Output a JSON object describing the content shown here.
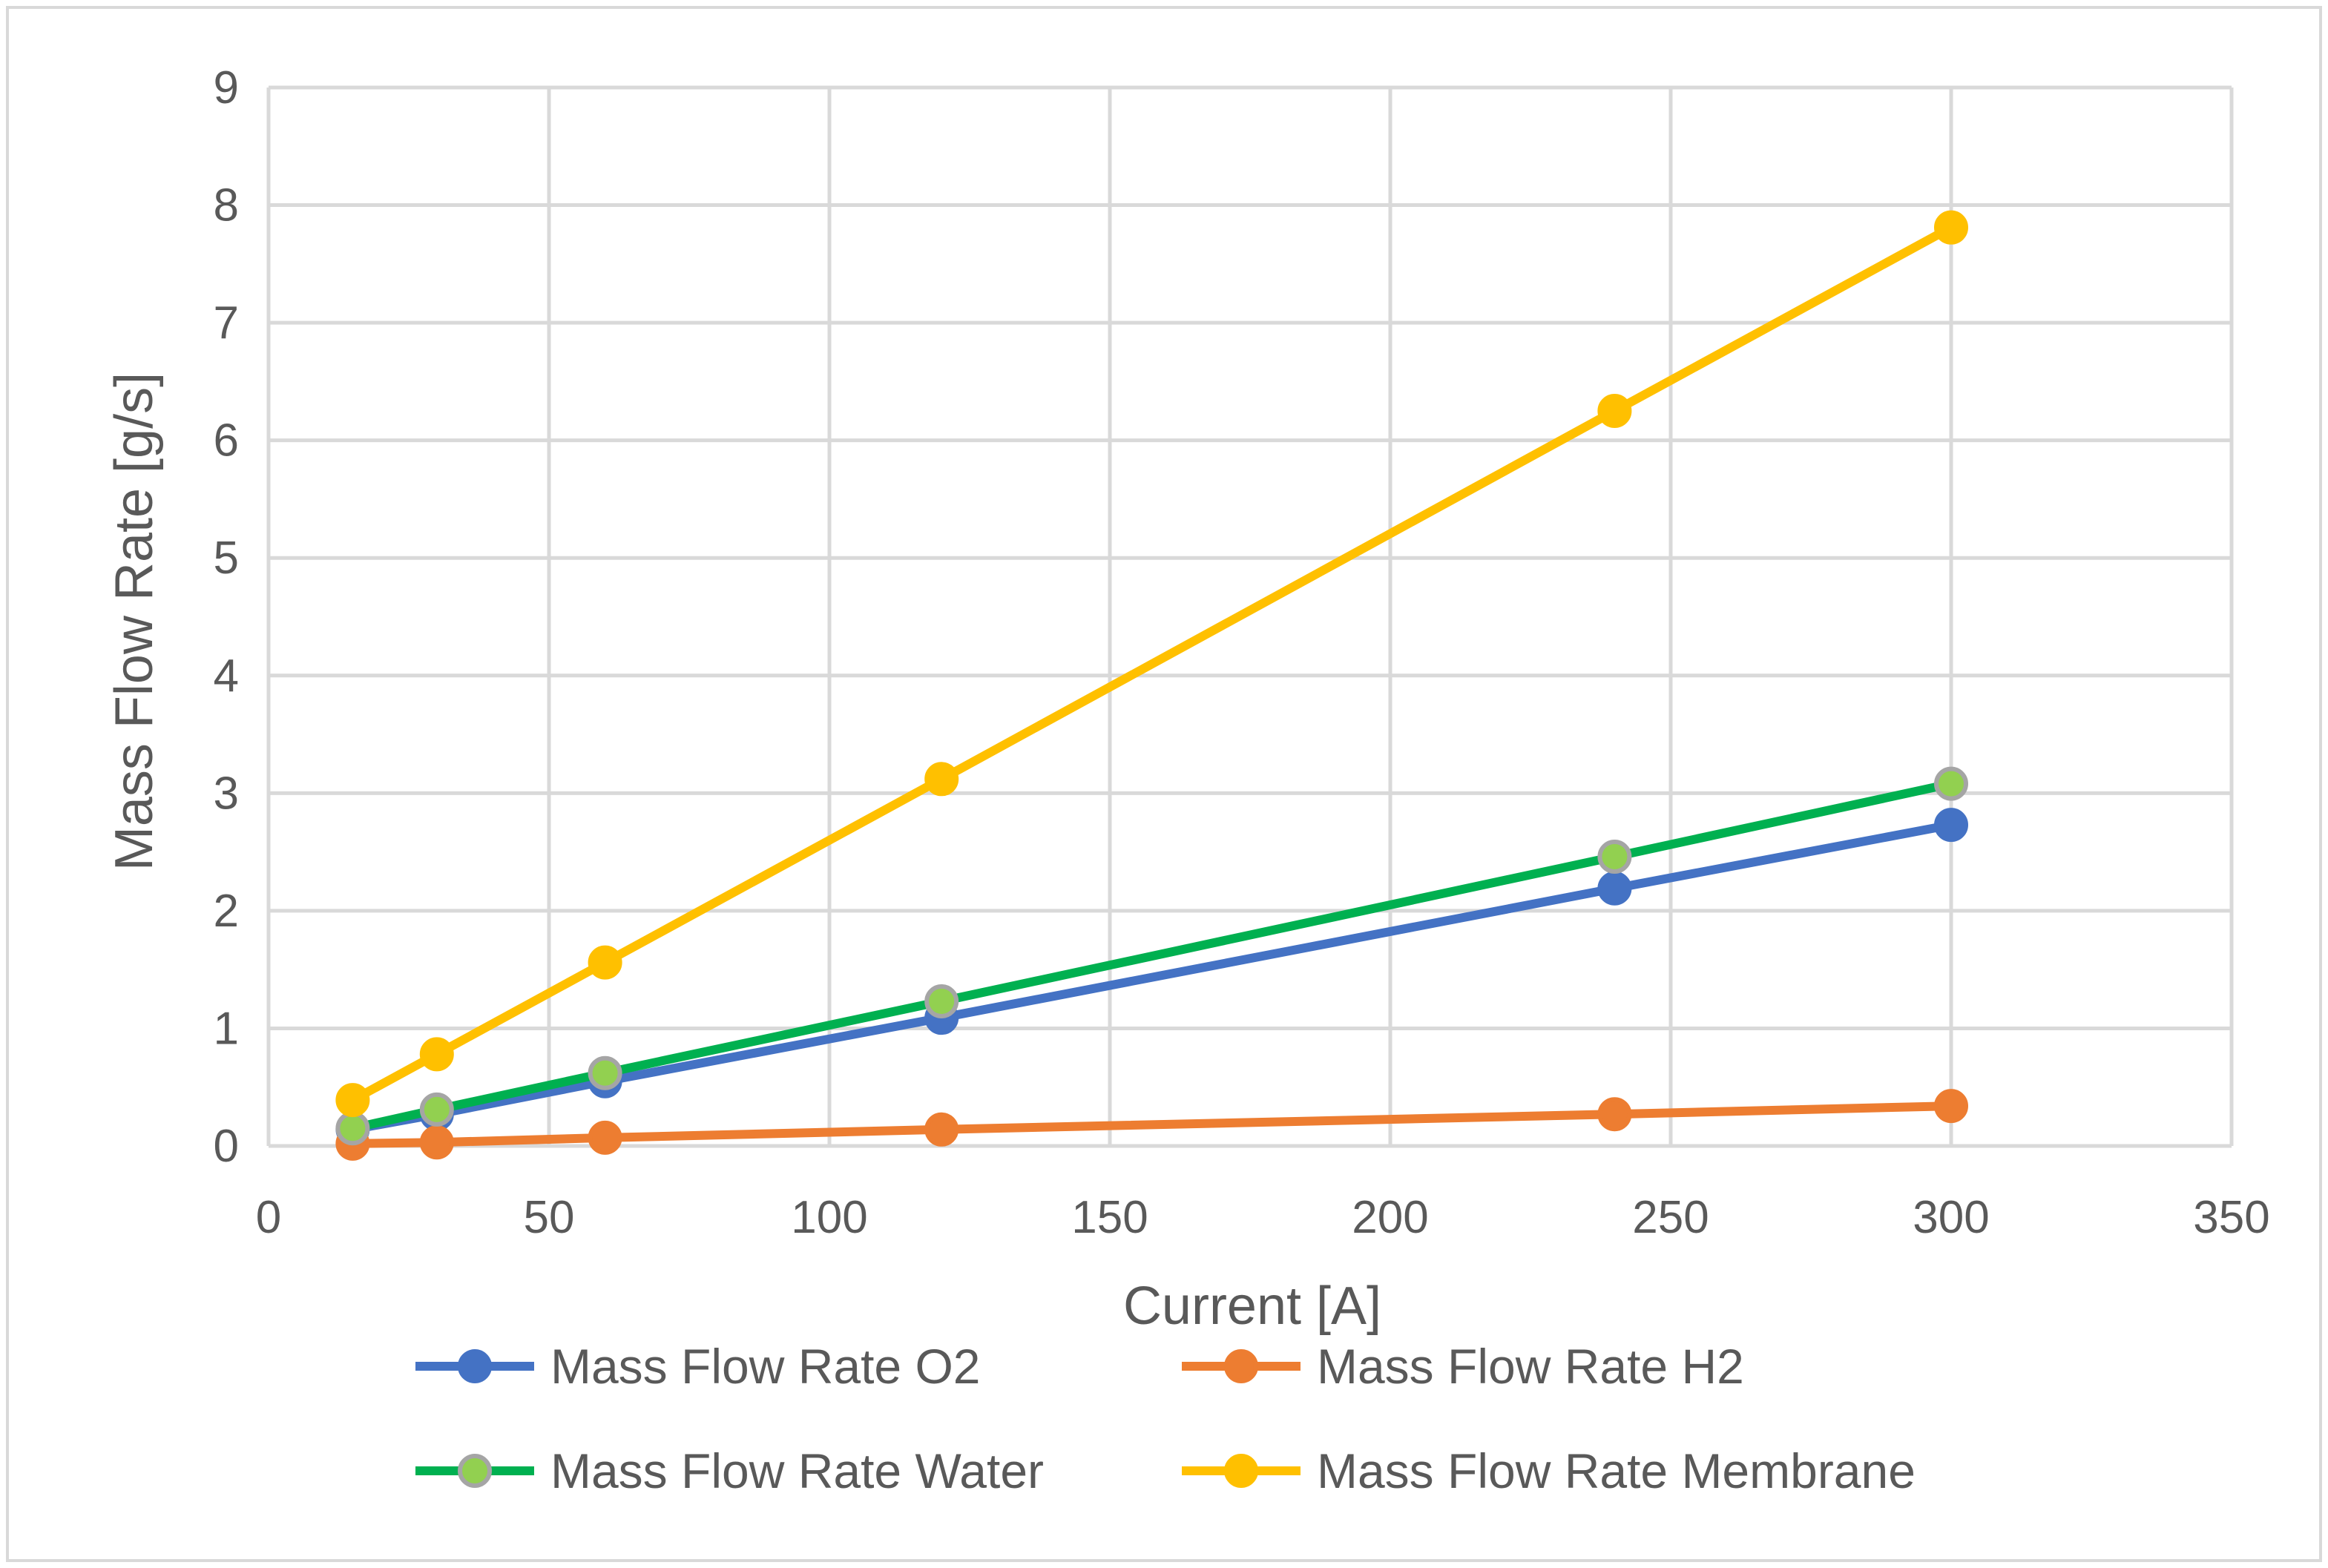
{
  "chart_data": {
    "type": "line",
    "title": "",
    "xlabel": "Current [A]",
    "ylabel": "Mass Flow Rate [g/s]",
    "xlim": [
      0,
      350
    ],
    "ylim": [
      0,
      9
    ],
    "xticks": [
      "0",
      "50",
      "100",
      "150",
      "200",
      "250",
      "300",
      "350"
    ],
    "yticks": [
      "0",
      "1",
      "2",
      "3",
      "4",
      "5",
      "6",
      "7",
      "8",
      "9"
    ],
    "grid": true,
    "legend_position": "bottom",
    "x": [
      15,
      30,
      60,
      120,
      240,
      300
    ],
    "series": [
      {
        "name": "Mass Flow Rate O2",
        "line_color": "#4472C4",
        "marker_fill": "#4472C4",
        "marker_edge": "#4472C4",
        "values": [
          0.14,
          0.27,
          0.55,
          1.09,
          2.19,
          2.73
        ]
      },
      {
        "name": "Mass Flow Rate H2",
        "line_color": "#ED7D31",
        "marker_fill": "#ED7D31",
        "marker_edge": "#ED7D31",
        "values": [
          0.02,
          0.03,
          0.07,
          0.14,
          0.27,
          0.34
        ]
      },
      {
        "name": "Mass Flow Rate Water",
        "line_color": "#00B050",
        "marker_fill": "#92D050",
        "marker_edge": "#A5A5A5",
        "values": [
          0.15,
          0.31,
          0.62,
          1.23,
          2.46,
          3.08
        ]
      },
      {
        "name": "Mass Flow Rate Membrane",
        "line_color": "#FFC000",
        "marker_fill": "#FFC000",
        "marker_edge": "#FFC000",
        "values": [
          0.39,
          0.78,
          1.56,
          3.12,
          6.25,
          7.81
        ]
      }
    ]
  },
  "colors": {
    "grid": "#D9D9D9",
    "text": "#595959",
    "frame": "#D9D9D9",
    "background": "#FFFFFF"
  }
}
